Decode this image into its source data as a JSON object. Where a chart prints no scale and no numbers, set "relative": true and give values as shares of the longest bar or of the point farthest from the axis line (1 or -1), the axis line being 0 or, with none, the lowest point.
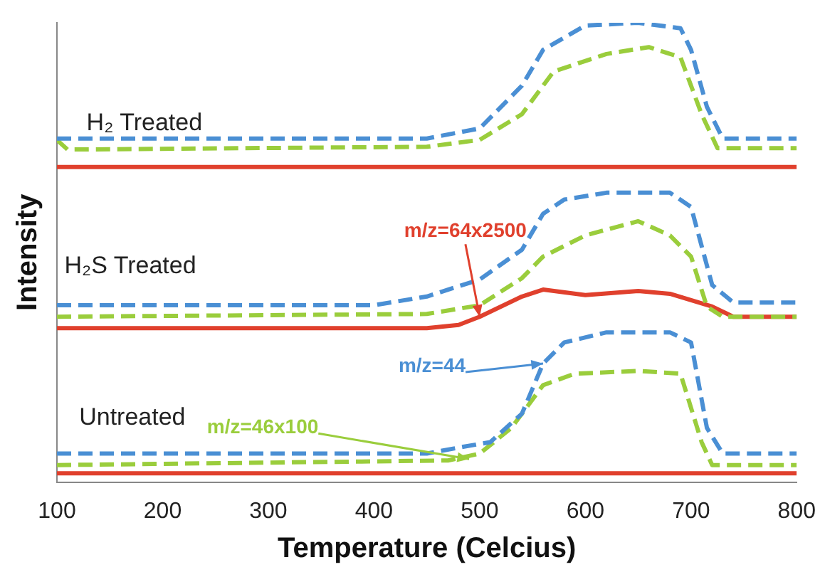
{
  "chart_data": {
    "type": "line",
    "relative": true,
    "xlabel": "Temperature (Celcius)",
    "ylabel": "Intensity",
    "xlim": [
      100,
      800
    ],
    "xticks": [
      100,
      200,
      300,
      400,
      500,
      600,
      700,
      800
    ],
    "grid": false,
    "legend": false,
    "marker": "none",
    "annotations": [
      "H₂ Treated",
      "H₂S Treated",
      "Untreated",
      {
        "text": "m/z=64x2500",
        "x": 500,
        "y": 0.36
      },
      {
        "text": "m/z=44",
        "x": 560,
        "y": 0.258
      },
      {
        "text": "m/z=46x100",
        "x": 490,
        "y": 0.05
      }
    ],
    "series": [
      {
        "color": "#4a8fd4",
        "line_style": "dashed",
        "x": [
          100,
          450,
          500,
          540,
          560,
          600,
          650,
          690,
          700,
          715,
          730,
          800
        ],
        "values": [
          0.748,
          0.748,
          0.77,
          0.863,
          0.941,
          0.994,
          1.0,
          0.988,
          0.941,
          0.817,
          0.748,
          0.748
        ]
      },
      {
        "color": "#9acd3c",
        "line_style": "dashed",
        "x": [
          100,
          110,
          450,
          500,
          540,
          570,
          620,
          660,
          690,
          710,
          725,
          800
        ],
        "values": [
          0.745,
          0.724,
          0.73,
          0.745,
          0.801,
          0.894,
          0.932,
          0.947,
          0.925,
          0.801,
          0.727,
          0.727
        ]
      },
      {
        "color": "#e0402d",
        "line_style": "solid",
        "x": [
          100,
          800
        ],
        "values": [
          0.686,
          0.686
        ]
      },
      {
        "color": "#4a8fd4",
        "line_style": "dashed",
        "x": [
          100,
          400,
          450,
          500,
          540,
          560,
          580,
          620,
          680,
          700,
          720,
          740,
          800
        ],
        "values": [
          0.385,
          0.385,
          0.404,
          0.441,
          0.506,
          0.584,
          0.615,
          0.63,
          0.63,
          0.599,
          0.429,
          0.391,
          0.391
        ]
      },
      {
        "color": "#9acd3c",
        "line_style": "dashed",
        "x": [
          100,
          450,
          500,
          540,
          560,
          600,
          650,
          680,
          700,
          715,
          730,
          800
        ],
        "values": [
          0.36,
          0.366,
          0.385,
          0.444,
          0.491,
          0.537,
          0.568,
          0.537,
          0.491,
          0.382,
          0.36,
          0.36
        ]
      },
      {
        "color": "#e0402d",
        "line_style": "solid",
        "x": [
          100,
          450,
          480,
          500,
          540,
          560,
          600,
          650,
          680,
          720,
          740,
          800
        ],
        "values": [
          0.335,
          0.335,
          0.342,
          0.36,
          0.404,
          0.419,
          0.407,
          0.416,
          0.41,
          0.382,
          0.36,
          0.36
        ]
      },
      {
        "color": "#4a8fd4",
        "line_style": "dashed",
        "x": [
          100,
          450,
          480,
          510,
          540,
          560,
          580,
          620,
          680,
          700,
          715,
          730,
          800
        ],
        "values": [
          0.062,
          0.062,
          0.075,
          0.087,
          0.149,
          0.258,
          0.304,
          0.326,
          0.326,
          0.304,
          0.118,
          0.062,
          0.062
        ]
      },
      {
        "color": "#9acd3c",
        "line_style": "dashed",
        "x": [
          100,
          470,
          500,
          530,
          560,
          590,
          650,
          690,
          710,
          720,
          800
        ],
        "values": [
          0.037,
          0.047,
          0.062,
          0.118,
          0.211,
          0.236,
          0.242,
          0.236,
          0.087,
          0.037,
          0.037
        ]
      },
      {
        "color": "#e0402d",
        "line_style": "solid",
        "x": [
          100,
          800
        ],
        "values": [
          0.019,
          0.019
        ]
      }
    ]
  }
}
